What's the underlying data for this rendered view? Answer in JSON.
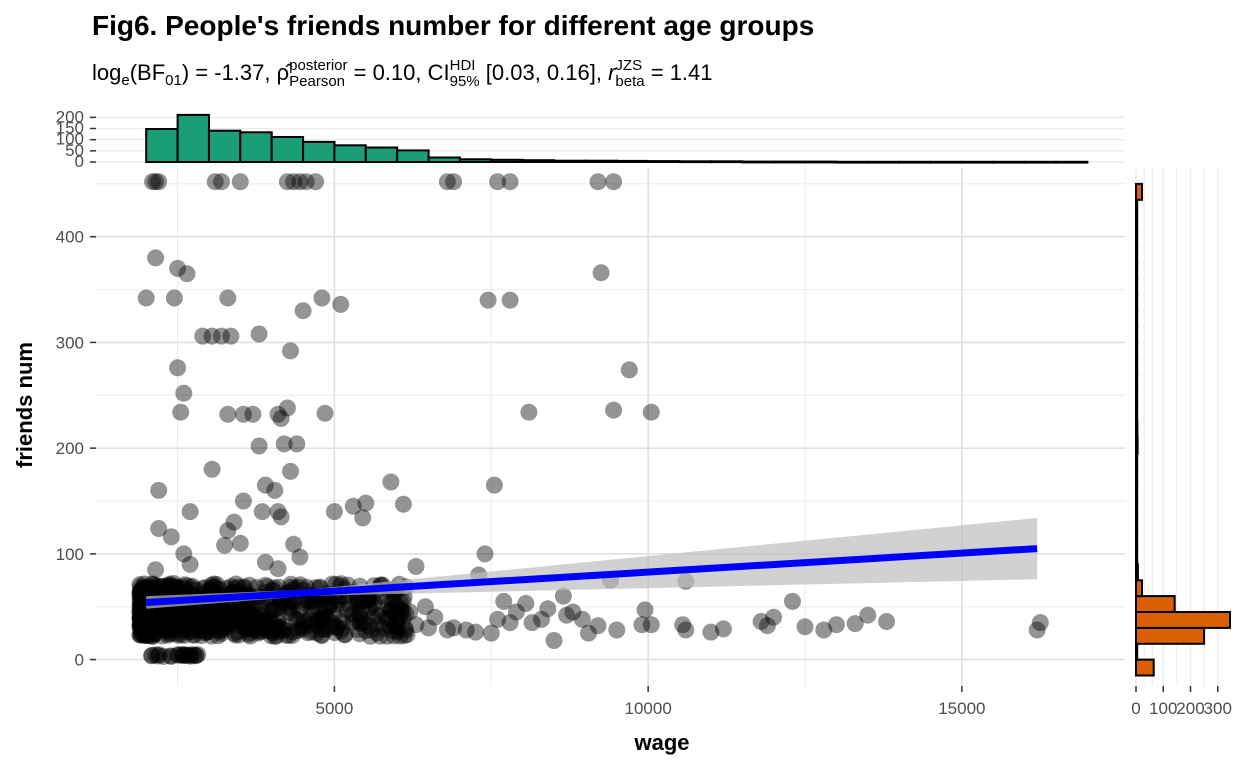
{
  "title": "Fig6. People's friends number for different age groups",
  "subtitle": {
    "stat_label": "log",
    "stat_label_sub": "e",
    "stat_label_arg": "(BF",
    "stat_label_arg_sub": "01",
    "stat_value": ") = -1.37, ",
    "rho_symbol": "ρ̂",
    "rho_sup": "posterior",
    "rho_sub": "Pearson",
    "rho_value": " = 0.10, CI",
    "ci_sup": "HDI",
    "ci_sub": "95%",
    "ci_value": " [0.03, 0.16], ",
    "r_symbol": "r",
    "r_sup": "JZS",
    "r_sub": "beta",
    "r_value": " = 1.41"
  },
  "colors": {
    "points": "#000000",
    "regression_line": "#0000ff",
    "ci_band": "#bdbdbd",
    "top_histogram": "#1b9e77",
    "right_histogram": "#d95f02",
    "grid": "#ebebeb"
  },
  "chart_data": [
    {
      "type": "scatter",
      "xlabel": "wage",
      "ylabel": "friends num",
      "xlim": [
        1200,
        17600
      ],
      "ylim": [
        -25,
        465
      ],
      "x_ticks": [
        5000,
        10000,
        15000
      ],
      "x_tick_labels": [
        "5000",
        "10000",
        "15000"
      ],
      "y_ticks": [
        0,
        100,
        200,
        300,
        400
      ],
      "y_tick_labels": [
        "0",
        "100",
        "200",
        "300",
        "400"
      ],
      "grid": true,
      "regression": {
        "x": [
          2000,
          16200
        ],
        "y": [
          54,
          105
        ],
        "ci_lower_end": 76,
        "ci_upper_end": 134
      },
      "points": [
        [
          2100,
          452
        ],
        [
          2150,
          452
        ],
        [
          2200,
          452
        ],
        [
          3100,
          452
        ],
        [
          3200,
          452
        ],
        [
          3500,
          452
        ],
        [
          4250,
          452
        ],
        [
          4350,
          452
        ],
        [
          4450,
          452
        ],
        [
          4550,
          452
        ],
        [
          4700,
          452
        ],
        [
          6800,
          452
        ],
        [
          6900,
          452
        ],
        [
          7600,
          452
        ],
        [
          7800,
          452
        ],
        [
          9200,
          452
        ],
        [
          9450,
          452
        ],
        [
          2150,
          380
        ],
        [
          2500,
          370
        ],
        [
          2650,
          365
        ],
        [
          2000,
          342
        ],
        [
          2450,
          342
        ],
        [
          3300,
          342
        ],
        [
          4800,
          342
        ],
        [
          5100,
          336
        ],
        [
          4500,
          330
        ],
        [
          7450,
          340
        ],
        [
          7800,
          340
        ],
        [
          9250,
          366
        ],
        [
          2900,
          306
        ],
        [
          3050,
          306
        ],
        [
          3200,
          306
        ],
        [
          3350,
          306
        ],
        [
          3800,
          308
        ],
        [
          4300,
          292
        ],
        [
          9700,
          274
        ],
        [
          2500,
          276
        ],
        [
          2600,
          252
        ],
        [
          2550,
          234
        ],
        [
          3300,
          232
        ],
        [
          3550,
          232
        ],
        [
          3700,
          232
        ],
        [
          4100,
          232
        ],
        [
          4250,
          238
        ],
        [
          4850,
          233
        ],
        [
          8100,
          234
        ],
        [
          9450,
          236
        ],
        [
          10050,
          234
        ],
        [
          4150,
          228
        ],
        [
          4200,
          204
        ],
        [
          4400,
          204
        ],
        [
          3800,
          202
        ],
        [
          4300,
          178
        ],
        [
          3050,
          180
        ],
        [
          2200,
          160
        ],
        [
          3550,
          150
        ],
        [
          3900,
          165
        ],
        [
          4050,
          160
        ],
        [
          3850,
          140
        ],
        [
          4100,
          140
        ],
        [
          4150,
          135
        ],
        [
          3400,
          130
        ],
        [
          3300,
          122
        ],
        [
          5000,
          140
        ],
        [
          5300,
          145
        ],
        [
          5500,
          148
        ],
        [
          5450,
          134
        ],
        [
          5900,
          168
        ],
        [
          6100,
          147
        ],
        [
          7550,
          165
        ],
        [
          2700,
          140
        ],
        [
          2200,
          124
        ],
        [
          2400,
          116
        ],
        [
          2600,
          100
        ],
        [
          3500,
          110
        ],
        [
          3250,
          108
        ],
        [
          4350,
          109
        ],
        [
          4450,
          97
        ],
        [
          3900,
          92
        ],
        [
          4100,
          86
        ],
        [
          2700,
          90
        ],
        [
          7400,
          100
        ],
        [
          7300,
          80
        ],
        [
          6300,
          88
        ],
        [
          2150,
          85
        ],
        [
          9400,
          75
        ],
        [
          10600,
          74
        ],
        [
          8500,
          18
        ],
        [
          9050,
          25
        ],
        [
          9500,
          28
        ],
        [
          9900,
          33
        ],
        [
          10050,
          33
        ],
        [
          10550,
          33
        ],
        [
          10600,
          28
        ],
        [
          11000,
          26
        ],
        [
          11200,
          29
        ],
        [
          11800,
          36
        ],
        [
          11900,
          32
        ],
        [
          12000,
          40
        ],
        [
          12300,
          55
        ],
        [
          12500,
          31
        ],
        [
          12800,
          28
        ],
        [
          13000,
          33
        ],
        [
          13300,
          34
        ],
        [
          13500,
          42
        ],
        [
          13800,
          36
        ],
        [
          16200,
          28
        ],
        [
          16250,
          35
        ],
        [
          8150,
          35
        ],
        [
          8300,
          38
        ],
        [
          8700,
          42
        ],
        [
          8800,
          45
        ],
        [
          8950,
          38
        ],
        [
          9200,
          32
        ],
        [
          9950,
          47
        ],
        [
          8650,
          60
        ],
        [
          8400,
          48
        ],
        [
          8050,
          53
        ],
        [
          7900,
          45
        ],
        [
          7600,
          38
        ],
        [
          7700,
          55
        ],
        [
          7250,
          26
        ],
        [
          7100,
          28
        ],
        [
          7500,
          25
        ],
        [
          7800,
          35
        ],
        [
          6800,
          28
        ],
        [
          6900,
          30
        ],
        [
          6500,
          30
        ],
        [
          6300,
          33
        ],
        [
          6600,
          40
        ],
        [
          6200,
          45
        ],
        [
          6450,
          50
        ]
      ],
      "cluster_low": {
        "x_range": [
          2050,
          2900
        ],
        "y": 4
      },
      "dense_band": {
        "x_range": [
          1900,
          6200
        ],
        "y_range": [
          22,
          72
        ]
      }
    },
    {
      "type": "bar",
      "name": "wage marginal histogram",
      "y_ticks": [
        0,
        50,
        100,
        150,
        200
      ],
      "y_tick_labels": [
        "0",
        "50",
        "100",
        "150",
        "200"
      ],
      "ylim": [
        0,
        215
      ],
      "bin_start": 2000,
      "bin_width": 500,
      "values": [
        148,
        211,
        140,
        133,
        112,
        90,
        75,
        65,
        52,
        20,
        12,
        10,
        8,
        6,
        6,
        5,
        4,
        3,
        3,
        2,
        2,
        2,
        1,
        1,
        1,
        1,
        1,
        1,
        1,
        1
      ]
    },
    {
      "type": "bar",
      "name": "friends num marginal histogram",
      "x_ticks": [
        0,
        100,
        200,
        300
      ],
      "x_tick_labels": [
        "0",
        "100",
        "200",
        "300"
      ],
      "xlim": [
        0,
        345
      ],
      "bin_start": -15,
      "bin_width": 15,
      "values": [
        65,
        0,
        250,
        345,
        142,
        22,
        7,
        3,
        3,
        2,
        2,
        2,
        3,
        2,
        6,
        5,
        3,
        2,
        4,
        2,
        2,
        1,
        2,
        3,
        1,
        2,
        2,
        1,
        0,
        0,
        22
      ]
    }
  ]
}
